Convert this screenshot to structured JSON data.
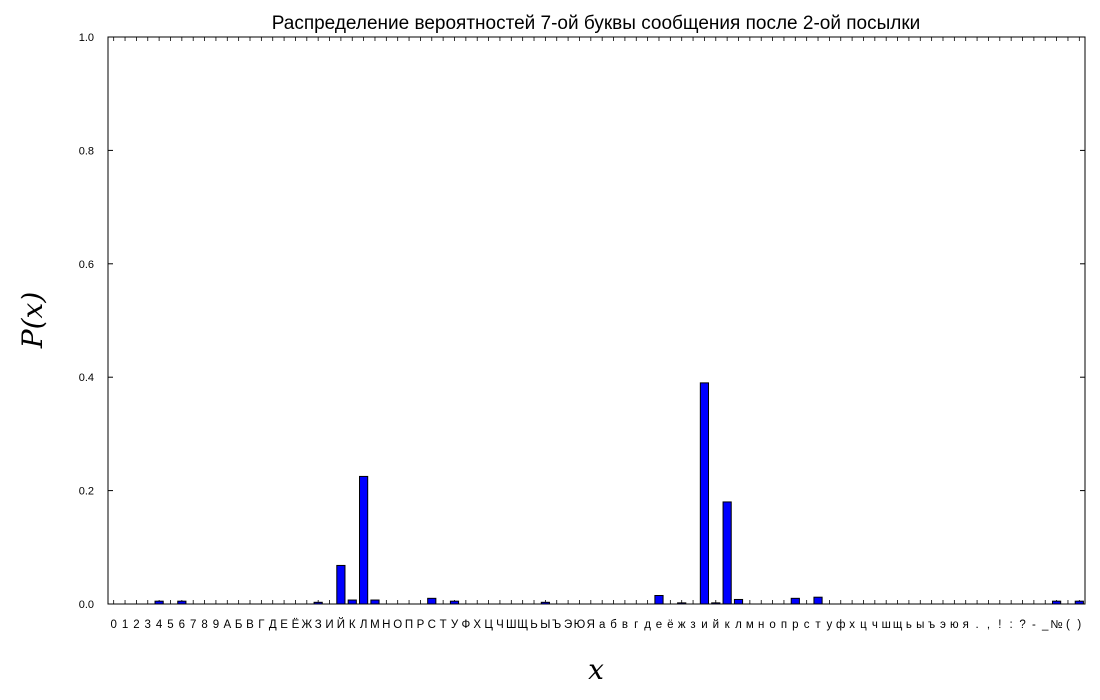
{
  "chart_data": {
    "type": "bar",
    "title": "Распределение вероятностей 7-ой буквы сообщения после 2-ой посылки",
    "xlabel": "x",
    "ylabel": "P(x)",
    "ylim": [
      0,
      1.0
    ],
    "yticks": [
      "0.0",
      "0.2",
      "0.4",
      "0.6",
      "0.8",
      "1.0"
    ],
    "bar_color": "#0000ff",
    "edge_color": "#000000",
    "grid": false,
    "categories": [
      "0",
      "1",
      "2",
      "3",
      "4",
      "5",
      "6",
      "7",
      "8",
      "9",
      "А",
      "Б",
      "В",
      "Г",
      "Д",
      "Е",
      "Ё",
      "Ж",
      "З",
      "И",
      "Й",
      "К",
      "Л",
      "М",
      "Н",
      "О",
      "П",
      "Р",
      "С",
      "Т",
      "У",
      "Ф",
      "Х",
      "Ц",
      "Ч",
      "Ш",
      "Щ",
      "Ь",
      "Ы",
      "Ъ",
      "Э",
      "Ю",
      "Я",
      "а",
      "б",
      "в",
      "г",
      "д",
      "е",
      "ё",
      "ж",
      "з",
      "и",
      "й",
      "к",
      "л",
      "м",
      "н",
      "о",
      "п",
      "р",
      "с",
      "т",
      "у",
      "ф",
      "х",
      "ц",
      "ч",
      "ш",
      "щ",
      "ь",
      "ы",
      "ъ",
      "э",
      "ю",
      "я",
      ".",
      ",",
      "!",
      ":",
      "?",
      "-",
      "_",
      "№",
      "(",
      ")"
    ],
    "values": [
      0,
      0,
      0,
      0,
      0.005,
      0,
      0.005,
      0,
      0,
      0,
      0,
      0,
      0,
      0,
      0,
      0,
      0,
      0,
      0.003,
      0,
      0.068,
      0.007,
      0.225,
      0.007,
      0,
      0,
      0,
      0,
      0.01,
      0,
      0.005,
      0,
      0,
      0,
      0,
      0,
      0,
      0,
      0.003,
      0,
      0,
      0,
      0,
      0,
      0,
      0,
      0,
      0,
      0.015,
      0,
      0.002,
      0,
      0.39,
      0.002,
      0.18,
      0.008,
      0,
      0,
      0,
      0,
      0.01,
      0,
      0.012,
      0,
      0,
      0,
      0,
      0,
      0,
      0,
      0,
      0,
      0,
      0,
      0,
      0,
      0,
      0,
      0,
      0,
      0,
      0,
      0,
      0.005,
      0,
      0.005
    ]
  }
}
